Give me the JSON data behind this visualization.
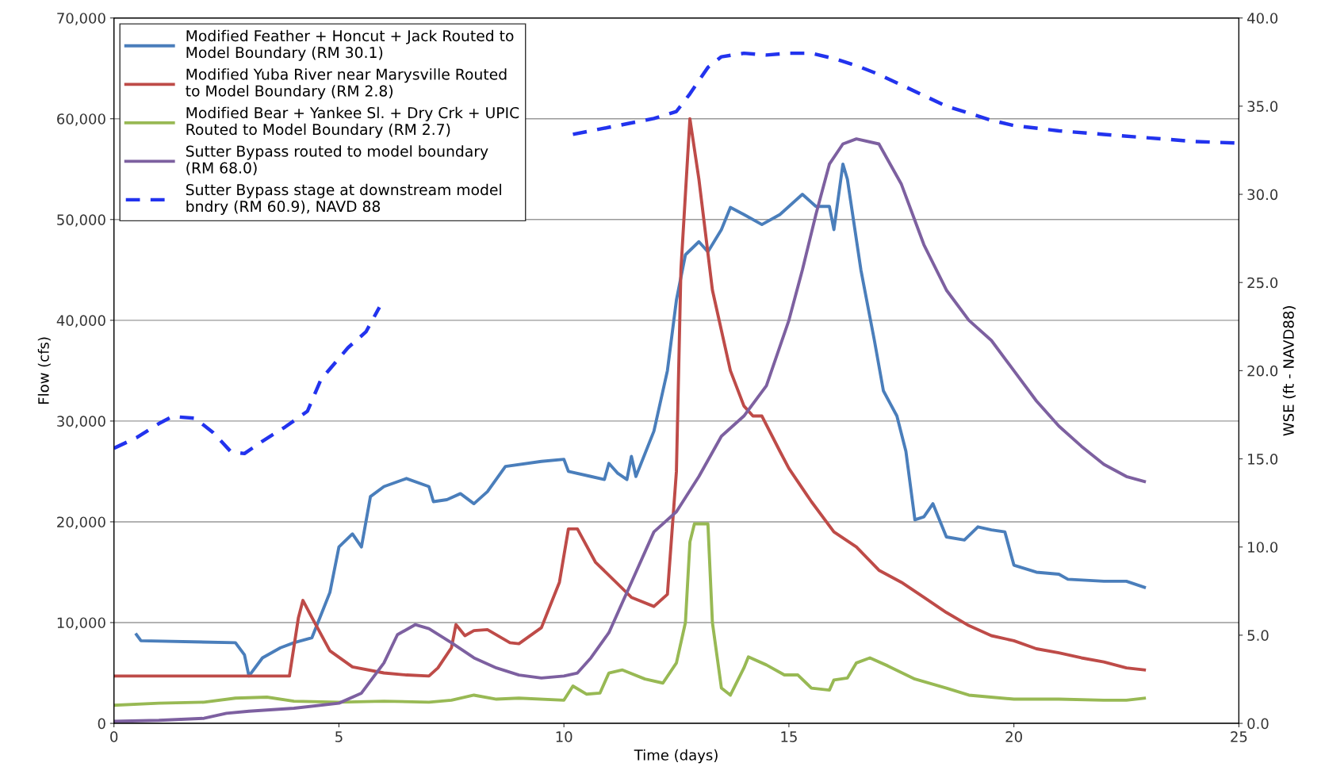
{
  "chart_data": {
    "type": "line",
    "xlabel": "Time (days)",
    "ylabel": "Flow (cfs)",
    "y2label": "WSE (ft - NAVD88)",
    "xlim": [
      0,
      25
    ],
    "xticks": [
      0,
      5,
      10,
      15,
      20,
      25
    ],
    "ylim": [
      0,
      70000
    ],
    "yticks": [
      {
        "value": 0,
        "label": "0"
      },
      {
        "value": 10000,
        "label": "10,000"
      },
      {
        "value": 20000,
        "label": "20,000"
      },
      {
        "value": 30000,
        "label": "30,000"
      },
      {
        "value": 40000,
        "label": "40,000"
      },
      {
        "value": 50000,
        "label": "50,000"
      },
      {
        "value": 60000,
        "label": "60,000"
      },
      {
        "value": 70000,
        "label": "70,000"
      }
    ],
    "y2lim": [
      0,
      40
    ],
    "y2ticks": [
      {
        "value": 0,
        "label": "0.0"
      },
      {
        "value": 5,
        "label": "5.0"
      },
      {
        "value": 10,
        "label": "10.0"
      },
      {
        "value": 15,
        "label": "15.0"
      },
      {
        "value": 20,
        "label": "20.0"
      },
      {
        "value": 25,
        "label": "25.0"
      },
      {
        "value": 30,
        "label": "30.0"
      },
      {
        "value": 35,
        "label": "35.0"
      },
      {
        "value": 40,
        "label": "40.0"
      }
    ],
    "grid": "y",
    "legend": "top left",
    "marker": "none",
    "series": [
      {
        "name": "Modified Feather + Honcut + Jack Routed to\nModel Boundary (RM 30.1)",
        "color": "#4a7ebb",
        "line_style": "solid",
        "x": [
          0.5,
          0.6,
          2.7,
          2.9,
          3.0,
          3.3,
          3.7,
          4.0,
          4.4,
          4.8,
          5.0,
          5.3,
          5.5,
          5.7,
          6.0,
          6.5,
          7.0,
          7.1,
          7.4,
          7.7,
          8.0,
          8.3,
          8.7,
          9.5,
          10.0,
          10.1,
          10.6,
          10.9,
          11.0,
          11.2,
          11.4,
          11.5,
          11.6,
          12.0,
          12.3,
          12.5,
          12.7,
          13.0,
          13.2,
          13.5,
          13.7,
          14.0,
          14.4,
          14.8,
          15.3,
          15.6,
          15.9,
          16.0,
          16.2,
          16.3,
          16.6,
          16.9,
          17.1,
          17.4,
          17.6,
          17.8,
          18.0,
          18.2,
          18.5,
          18.9,
          19.2,
          19.5,
          19.8,
          20.0,
          20.5,
          21.0,
          21.2,
          22.0,
          22.5,
          22.9
        ],
        "values": [
          8800,
          8200,
          8000,
          6800,
          4700,
          6500,
          7500,
          8000,
          8500,
          13000,
          17500,
          18800,
          17500,
          22500,
          23500,
          24300,
          23500,
          22000,
          22200,
          22800,
          21800,
          23000,
          25500,
          26000,
          26200,
          25000,
          24500,
          24200,
          25800,
          24800,
          24200,
          26500,
          24500,
          29000,
          35000,
          42000,
          46500,
          47800,
          46800,
          49000,
          51200,
          50500,
          49500,
          50500,
          52500,
          51300,
          51300,
          49000,
          55500,
          54000,
          45000,
          38000,
          33000,
          30500,
          27000,
          20200,
          20500,
          21800,
          18500,
          18200,
          19500,
          19200,
          19000,
          15700,
          15000,
          14800,
          14300,
          14100,
          14100,
          13500
        ]
      },
      {
        "name": "Modified Yuba River near Marysville Routed\nto Model Boundary (RM 2.8)",
        "color": "#be4b48",
        "line_style": "solid",
        "x": [
          0,
          3.9,
          4.1,
          4.2,
          4.4,
          4.8,
          5.3,
          6.0,
          6.5,
          7.0,
          7.2,
          7.5,
          7.6,
          7.8,
          8.0,
          8.3,
          8.8,
          9.0,
          9.5,
          9.9,
          10.1,
          10.3,
          10.7,
          11.5,
          12.0,
          12.3,
          12.5,
          12.6,
          12.8,
          13.0,
          13.3,
          13.7,
          14.0,
          14.2,
          14.4,
          14.8,
          15.0,
          15.5,
          16.0,
          16.5,
          17.0,
          17.5,
          18.0,
          18.5,
          19.0,
          19.5,
          20.0,
          20.5,
          21.0,
          21.5,
          22.0,
          22.5,
          22.9
        ],
        "values": [
          4700,
          4700,
          10500,
          12200,
          10500,
          7200,
          5600,
          5000,
          4800,
          4700,
          5500,
          7500,
          9800,
          8700,
          9200,
          9300,
          8000,
          7900,
          9500,
          14000,
          19300,
          19300,
          16000,
          12500,
          11600,
          12800,
          25000,
          45000,
          60000,
          54000,
          43000,
          35000,
          31500,
          30500,
          30500,
          27000,
          25300,
          22000,
          19000,
          17500,
          15200,
          14000,
          12500,
          11000,
          9700,
          8700,
          8200,
          7400,
          7000,
          6500,
          6100,
          5500,
          5300
        ]
      },
      {
        "name": "Modified Bear + Yankee Sl. + Dry Crk + UPIC\nRouted to Model Boundary (RM 2.7)",
        "color": "#98b954",
        "line_style": "solid",
        "x": [
          0,
          1,
          2,
          2.7,
          3.4,
          4,
          5,
          6,
          7,
          7.5,
          8.0,
          8.5,
          9,
          10,
          10.2,
          10.5,
          10.8,
          11.0,
          11.3,
          11.8,
          12.2,
          12.5,
          12.7,
          12.8,
          12.9,
          13.2,
          13.3,
          13.5,
          13.7,
          14.0,
          14.1,
          14.5,
          14.9,
          15.2,
          15.5,
          15.9,
          16.0,
          16.3,
          16.5,
          16.8,
          17.2,
          17.8,
          18.5,
          19,
          20,
          21,
          22,
          22.5,
          22.9
        ],
        "values": [
          1800,
          2000,
          2100,
          2500,
          2600,
          2200,
          2100,
          2200,
          2100,
          2300,
          2800,
          2400,
          2500,
          2300,
          3700,
          2900,
          3000,
          5000,
          5300,
          4400,
          4000,
          6000,
          10000,
          18000,
          19800,
          19800,
          10000,
          3500,
          2800,
          5500,
          6600,
          5800,
          4800,
          4800,
          3500,
          3300,
          4300,
          4500,
          6000,
          6500,
          5700,
          4400,
          3500,
          2800,
          2400,
          2400,
          2300,
          2300,
          2500
        ]
      },
      {
        "name": "Sutter Bypass routed to model boundary\n(RM 68.0)",
        "color": "#7d60a0",
        "line_style": "solid",
        "x": [
          0,
          1,
          2,
          2.5,
          3,
          4,
          5,
          5.5,
          6.0,
          6.3,
          6.7,
          7.0,
          7.5,
          8.0,
          8.5,
          9.0,
          9.5,
          10.0,
          10.3,
          10.6,
          11.0,
          11.5,
          12.0,
          12.5,
          13.0,
          13.5,
          14.0,
          14.5,
          15.0,
          15.3,
          15.6,
          15.9,
          16.2,
          16.5,
          17.0,
          17.5,
          18.0,
          18.5,
          19.0,
          19.5,
          20.0,
          20.5,
          21.0,
          21.5,
          22.0,
          22.5,
          22.9
        ],
        "values": [
          200,
          300,
          500,
          1000,
          1200,
          1500,
          2000,
          3000,
          6000,
          8800,
          9800,
          9400,
          8000,
          6500,
          5500,
          4800,
          4500,
          4700,
          5000,
          6500,
          9000,
          14000,
          19000,
          21000,
          24500,
          28500,
          30500,
          33500,
          40000,
          45000,
          50500,
          55500,
          57500,
          58000,
          57500,
          53500,
          47500,
          43000,
          40000,
          38000,
          35000,
          32000,
          29500,
          27500,
          25700,
          24500,
          24000
        ]
      },
      {
        "name": "Sutter Bypass stage at downstream model\nbndry (RM 60.9), NAVD 88",
        "color": "#2233ee",
        "line_style": "dashed",
        "axis": "y2",
        "x": [
          0,
          0.5,
          1.0,
          1.3,
          1.8,
          2.2,
          2.6,
          2.9,
          3.3,
          3.8,
          4.3,
          4.6,
          5.2,
          5.6,
          5.9,
          8.0,
          10.2,
          11,
          12,
          12.5,
          12.8,
          13.2,
          13.5,
          14,
          14.5,
          15,
          15.5,
          16,
          16.5,
          17,
          17.5,
          18,
          18.5,
          19,
          19.5,
          20,
          21,
          22,
          23,
          24,
          25
        ],
        "values": [
          15.6,
          16.2,
          17.0,
          17.4,
          17.3,
          16.5,
          15.4,
          15.3,
          16.0,
          16.8,
          17.7,
          19.5,
          21.3,
          22.2,
          23.6,
          null,
          33.4,
          33.8,
          34.3,
          34.7,
          35.7,
          37.2,
          37.8,
          38.0,
          37.9,
          38.0,
          38.0,
          37.7,
          37.3,
          36.8,
          36.2,
          35.6,
          35.0,
          34.6,
          34.2,
          33.9,
          33.6,
          33.4,
          33.2,
          33.0,
          32.9
        ]
      }
    ]
  }
}
